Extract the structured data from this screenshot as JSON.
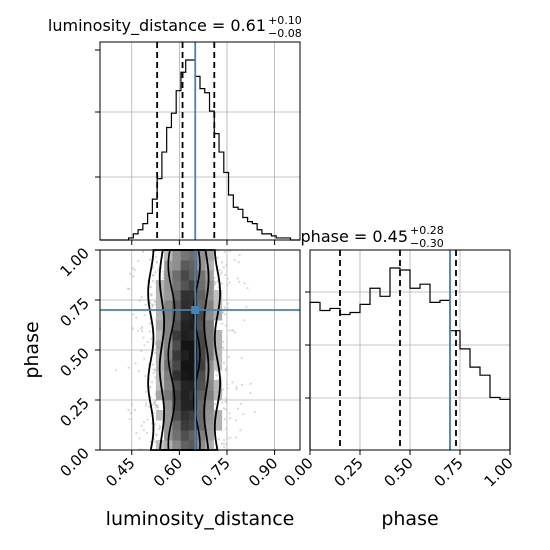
{
  "chart_data": {
    "type": "corner",
    "parameters": [
      "luminosity_distance",
      "phase"
    ],
    "truths": {
      "luminosity_distance": 0.65,
      "phase": 0.7
    },
    "colors": {
      "hist": "#000000",
      "truth": "#4682b4",
      "grid": "#b0b0b0",
      "points": "#bdbdbd"
    },
    "panels": [
      {
        "name": "luminosity_distance-marginal",
        "type": "histogram",
        "title": "luminosity_distance = 0.61",
        "title_sup": "+0.10",
        "title_sub": "−0.08",
        "quantiles": [
          0.53,
          0.61,
          0.71
        ],
        "xlim": [
          0.35,
          0.98
        ],
        "bin_edges": [
          0.35,
          0.365,
          0.38,
          0.395,
          0.41,
          0.425,
          0.44,
          0.455,
          0.47,
          0.485,
          0.5,
          0.515,
          0.53,
          0.545,
          0.56,
          0.575,
          0.59,
          0.605,
          0.62,
          0.635,
          0.65,
          0.665,
          0.68,
          0.695,
          0.71,
          0.725,
          0.74,
          0.755,
          0.77,
          0.785,
          0.8,
          0.815,
          0.83,
          0.845,
          0.86,
          0.875,
          0.89,
          0.905,
          0.92,
          0.935,
          0.95,
          0.965,
          0.98
        ],
        "counts": [
          0,
          0,
          0,
          0,
          0,
          0,
          0.01,
          0.03,
          0.05,
          0.08,
          0.13,
          0.2,
          0.3,
          0.43,
          0.55,
          0.62,
          0.73,
          0.82,
          0.88,
          0.88,
          0.8,
          0.74,
          0.72,
          0.63,
          0.52,
          0.43,
          0.33,
          0.22,
          0.16,
          0.15,
          0.11,
          0.09,
          0.08,
          0.05,
          0.03,
          0.03,
          0.02,
          0.01,
          0.01,
          0.01,
          0,
          0
        ]
      },
      {
        "name": "phase-marginal",
        "type": "histogram",
        "title": "phase = 0.45",
        "title_sup": "+0.28",
        "title_sub": "−0.30",
        "quantiles": [
          0.15,
          0.45,
          0.73
        ],
        "xlim": [
          0.0,
          1.0
        ],
        "xticks": [
          "0.00",
          "0.25",
          "0.50",
          "0.75",
          "1.00"
        ],
        "xlabel": "phase",
        "bin_edges": [
          0,
          0.05,
          0.1,
          0.15,
          0.2,
          0.25,
          0.3,
          0.35,
          0.4,
          0.45,
          0.5,
          0.55,
          0.6,
          0.65,
          0.7,
          0.75,
          0.8,
          0.85,
          0.9,
          0.95,
          1.0
        ],
        "counts": [
          0.73,
          0.69,
          0.7,
          0.67,
          0.68,
          0.72,
          0.8,
          0.76,
          0.9,
          0.89,
          0.8,
          0.82,
          0.73,
          0.74,
          0.59,
          0.5,
          0.41,
          0.37,
          0.26,
          0.25
        ]
      },
      {
        "name": "joint",
        "type": "2d-histogram-contour",
        "xlabel": "luminosity_distance",
        "ylabel": "phase",
        "xlim": [
          0.35,
          0.98
        ],
        "ylim": [
          0.0,
          1.0
        ],
        "xticks": [
          "0.45",
          "0.60",
          "0.75",
          "0.90"
        ],
        "yticks": [
          "0.00",
          "0.25",
          "0.50",
          "0.75",
          "1.00"
        ],
        "x_values": [
          0.45,
          0.6,
          0.75,
          0.9
        ],
        "y_values": [
          0.0,
          0.25,
          0.5,
          0.75,
          1.0
        ]
      }
    ]
  }
}
